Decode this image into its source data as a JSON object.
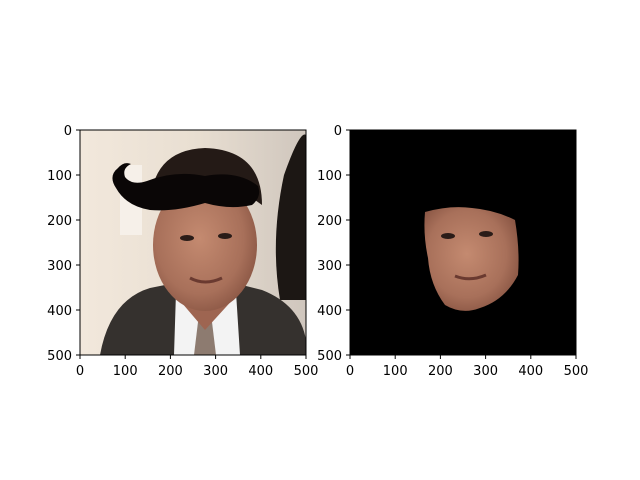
{
  "chart_data": [
    {
      "type": "image",
      "xlim": [
        0,
        500
      ],
      "ylim": [
        500,
        0
      ],
      "xticks": [
        0,
        100,
        200,
        300,
        400,
        500
      ],
      "yticks": [
        0,
        100,
        200,
        300,
        400,
        500
      ],
      "content": "photo of a man in a suit with a drawn black mustache shape over his hair",
      "colors": {
        "background": "#e8ddd0",
        "mustache": "#0a0606",
        "suit": "#33302d",
        "shirt": "#f1f1f1",
        "skin": "#b07a62",
        "hair": "#241a16"
      }
    },
    {
      "type": "image",
      "xlim": [
        0,
        500
      ],
      "ylim": [
        500,
        0
      ],
      "xticks": [
        0,
        100,
        200,
        300,
        400,
        500
      ],
      "yticks": [
        0,
        100,
        200,
        300,
        400,
        500
      ],
      "content": "black background with only the segmented face region visible",
      "colors": {
        "background": "#000000",
        "skin": "#b07a62"
      }
    }
  ]
}
